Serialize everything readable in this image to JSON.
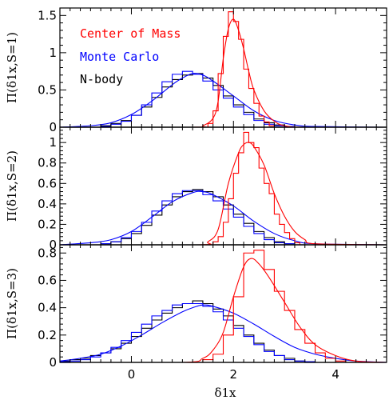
{
  "chart_data": {
    "type": "line",
    "x_label": "δ1x",
    "x_range": [
      -1.4,
      5.0
    ],
    "x_ticks": [
      0,
      2,
      4
    ],
    "legend": {
      "placement": "top-left",
      "entries": [
        {
          "label": "Center of Mass",
          "color": "#ff0000"
        },
        {
          "label": "Monte Carlo",
          "color": "#0000ff"
        },
        {
          "label": "N-body",
          "color": "#000000"
        }
      ]
    },
    "panels": [
      {
        "y_label": "Π(δ1x,S=1)",
        "y_range": [
          0,
          1.6
        ],
        "y_ticks": [
          0,
          0.5,
          1,
          1.5
        ],
        "y_tick_labels": [
          "0",
          "0.5",
          "1",
          "1.5"
        ],
        "hist_edges": [
          -0.6,
          -0.4,
          -0.2,
          0.0,
          0.2,
          0.4,
          0.6,
          0.8,
          1.0,
          1.2,
          1.4,
          1.6,
          1.8,
          2.0,
          2.2,
          2.4,
          2.6,
          2.8,
          3.0,
          3.2
        ],
        "series": [
          {
            "name": "N-body",
            "color": "#000000",
            "kind": "hist",
            "values": [
              0.02,
              0.05,
              0.09,
              0.16,
              0.27,
              0.4,
              0.54,
              0.64,
              0.7,
              0.72,
              0.66,
              0.56,
              0.42,
              0.3,
              0.2,
              0.11,
              0.06,
              0.03,
              0.01
            ]
          },
          {
            "name": "Monte Carlo",
            "color": "#0000ff",
            "kind": "hist",
            "values": [
              0.01,
              0.04,
              0.08,
              0.16,
              0.3,
              0.46,
              0.61,
              0.71,
              0.75,
              0.71,
              0.62,
              0.5,
              0.39,
              0.27,
              0.17,
              0.09,
              0.04,
              0.02,
              0.01
            ]
          },
          {
            "name": "Monte Carlo",
            "color": "#0000ff",
            "kind": "curve",
            "x": [
              -1.4,
              -0.8,
              -0.4,
              0.0,
              0.4,
              0.8,
              1.0,
              1.2,
              1.4,
              1.6,
              2.0,
              2.4,
              2.8,
              3.2,
              3.6,
              5.0
            ],
            "y": [
              0.0,
              0.02,
              0.06,
              0.17,
              0.35,
              0.57,
              0.66,
              0.72,
              0.7,
              0.62,
              0.42,
              0.22,
              0.09,
              0.03,
              0.01,
              0.0
            ]
          },
          {
            "name": "Center of Mass",
            "color": "#ff0000",
            "kind": "hist",
            "edges": [
              1.5,
              1.6,
              1.7,
              1.8,
              1.9,
              2.0,
              2.1,
              2.2,
              2.3,
              2.4,
              2.5,
              2.6,
              2.7,
              2.8
            ],
            "values": [
              0.05,
              0.22,
              0.72,
              1.22,
              1.55,
              1.42,
              1.18,
              0.78,
              0.52,
              0.32,
              0.15,
              0.07,
              0.02
            ]
          },
          {
            "name": "Center of Mass",
            "color": "#ff0000",
            "kind": "curve",
            "x": [
              -1.4,
              1.2,
              1.4,
              1.6,
              1.7,
              1.8,
              1.9,
              2.0,
              2.1,
              2.2,
              2.3,
              2.4,
              2.6,
              2.8,
              3.0,
              3.4,
              5.0
            ],
            "y": [
              0.0,
              0.0,
              0.02,
              0.12,
              0.35,
              0.92,
              1.32,
              1.45,
              1.3,
              1.05,
              0.75,
              0.5,
              0.22,
              0.08,
              0.02,
              0.0,
              0.0
            ]
          }
        ]
      },
      {
        "y_label": "Π(δ1x,S=2)",
        "y_range": [
          0,
          1.15
        ],
        "y_ticks": [
          0,
          0.2,
          0.4,
          0.6,
          0.8,
          1.0
        ],
        "y_tick_labels": [
          "0",
          "0.2",
          "0.4",
          "0.6",
          "0.8",
          "1"
        ],
        "hist_edges": [
          -0.6,
          -0.4,
          -0.2,
          0.0,
          0.2,
          0.4,
          0.6,
          0.8,
          1.0,
          1.2,
          1.4,
          1.6,
          1.8,
          2.0,
          2.2,
          2.4,
          2.6,
          2.8,
          3.0,
          3.2
        ],
        "series": [
          {
            "name": "N-body",
            "color": "#000000",
            "kind": "hist",
            "values": [
              0.01,
              0.03,
              0.06,
              0.11,
              0.19,
              0.29,
              0.39,
              0.47,
              0.52,
              0.54,
              0.52,
              0.47,
              0.39,
              0.3,
              0.21,
              0.13,
              0.07,
              0.03,
              0.01
            ]
          },
          {
            "name": "Monte Carlo",
            "color": "#0000ff",
            "kind": "hist",
            "values": [
              0.01,
              0.03,
              0.07,
              0.13,
              0.22,
              0.33,
              0.43,
              0.5,
              0.53,
              0.53,
              0.49,
              0.43,
              0.35,
              0.27,
              0.18,
              0.11,
              0.05,
              0.02,
              0.01
            ]
          },
          {
            "name": "Monte Carlo",
            "color": "#0000ff",
            "kind": "curve",
            "x": [
              -1.4,
              -0.8,
              -0.4,
              0.0,
              0.4,
              0.8,
              1.2,
              1.4,
              1.6,
              2.0,
              2.4,
              2.8,
              3.2,
              3.6,
              5.0
            ],
            "y": [
              0.0,
              0.02,
              0.05,
              0.13,
              0.27,
              0.42,
              0.51,
              0.52,
              0.49,
              0.38,
              0.23,
              0.11,
              0.04,
              0.01,
              0.0
            ]
          },
          {
            "name": "Center of Mass",
            "color": "#ff0000",
            "kind": "hist",
            "edges": [
              1.6,
              1.7,
              1.8,
              1.9,
              2.0,
              2.1,
              2.2,
              2.3,
              2.4,
              2.5,
              2.6,
              2.7,
              2.8,
              2.9,
              3.0,
              3.1,
              3.2,
              3.3
            ],
            "values": [
              0.03,
              0.08,
              0.22,
              0.45,
              0.7,
              0.9,
              1.1,
              1.0,
              0.95,
              0.75,
              0.6,
              0.5,
              0.3,
              0.2,
              0.12,
              0.06,
              0.02
            ]
          },
          {
            "name": "Center of Mass",
            "color": "#ff0000",
            "kind": "curve",
            "x": [
              -1.4,
              1.3,
              1.5,
              1.7,
              1.9,
              2.1,
              2.2,
              2.3,
              2.4,
              2.6,
              2.8,
              3.0,
              3.2,
              3.4,
              3.6,
              5.0
            ],
            "y": [
              0.0,
              0.0,
              0.03,
              0.15,
              0.6,
              0.9,
              0.98,
              1.0,
              0.96,
              0.78,
              0.5,
              0.28,
              0.13,
              0.05,
              0.01,
              0.0
            ]
          }
        ]
      },
      {
        "y_label": "Π(δ1x,S=3)",
        "y_range": [
          0,
          0.86
        ],
        "y_ticks": [
          0,
          0.2,
          0.4,
          0.6,
          0.8
        ],
        "y_tick_labels": [
          "0",
          "0.2",
          "0.4",
          "0.6",
          "0.8"
        ],
        "hist_edges": [
          -1.4,
          -1.2,
          -1.0,
          -0.8,
          -0.6,
          -0.4,
          -0.2,
          0.0,
          0.2,
          0.4,
          0.6,
          0.8,
          1.0,
          1.2,
          1.4,
          1.6,
          1.8,
          2.0,
          2.2,
          2.4,
          2.6,
          2.8,
          3.0,
          3.2,
          3.4,
          3.6
        ],
        "series": [
          {
            "name": "N-body",
            "color": "#000000",
            "kind": "hist",
            "values": [
              0.01,
              0.02,
              0.03,
              0.05,
              0.07,
              0.1,
              0.14,
              0.19,
              0.25,
              0.31,
              0.36,
              0.4,
              0.43,
              0.45,
              0.43,
              0.39,
              0.34,
              0.27,
              0.2,
              0.14,
              0.09,
              0.05,
              0.03,
              0.01,
              0.005
            ]
          },
          {
            "name": "Monte Carlo",
            "color": "#0000ff",
            "kind": "hist",
            "values": [
              0.005,
              0.01,
              0.02,
              0.04,
              0.07,
              0.11,
              0.16,
              0.22,
              0.28,
              0.34,
              0.38,
              0.42,
              0.43,
              0.43,
              0.41,
              0.37,
              0.31,
              0.25,
              0.19,
              0.13,
              0.08,
              0.05,
              0.02,
              0.01,
              0.005
            ]
          },
          {
            "name": "Monte Carlo",
            "color": "#0000ff",
            "kind": "curve",
            "x": [
              -1.4,
              -1.0,
              -0.6,
              -0.2,
              0.2,
              0.6,
              1.0,
              1.2,
              1.4,
              1.6,
              2.0,
              2.4,
              2.8,
              3.2,
              3.6,
              4.0,
              4.4,
              5.0
            ],
            "y": [
              0.01,
              0.03,
              0.06,
              0.12,
              0.2,
              0.29,
              0.37,
              0.4,
              0.42,
              0.41,
              0.36,
              0.28,
              0.19,
              0.11,
              0.06,
              0.03,
              0.01,
              0.0
            ]
          },
          {
            "name": "Center of Mass",
            "color": "#ff0000",
            "kind": "hist",
            "edges": [
              1.4,
              1.6,
              1.8,
              2.0,
              2.2,
              2.4,
              2.6,
              2.8,
              3.0,
              3.2,
              3.4,
              3.6,
              3.8,
              4.0,
              4.2
            ],
            "values": [
              0.02,
              0.06,
              0.2,
              0.48,
              0.8,
              0.82,
              0.68,
              0.52,
              0.38,
              0.24,
              0.14,
              0.07,
              0.03,
              0.01
            ]
          },
          {
            "name": "Center of Mass",
            "color": "#ff0000",
            "kind": "curve",
            "x": [
              -1.4,
              1.0,
              1.4,
              1.6,
              1.8,
              2.0,
              2.2,
              2.35,
              2.5,
              2.7,
              3.0,
              3.3,
              3.6,
              4.0,
              4.4,
              5.0
            ],
            "y": [
              0.0,
              0.0,
              0.03,
              0.09,
              0.22,
              0.48,
              0.7,
              0.76,
              0.72,
              0.62,
              0.44,
              0.26,
              0.13,
              0.05,
              0.01,
              0.0
            ]
          }
        ]
      }
    ]
  }
}
